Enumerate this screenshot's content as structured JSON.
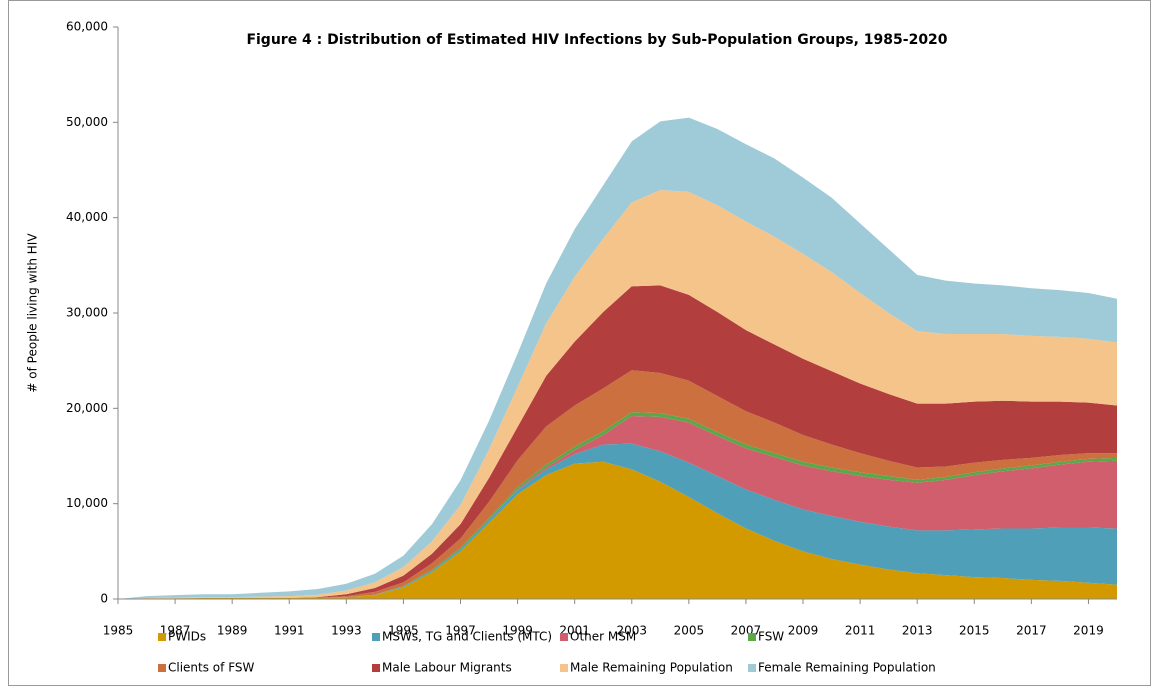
{
  "chart_data": {
    "type": "stacked_area",
    "title": "Figure 4 : Distribution of Estimated HIV Infections by Sub-Population Groups, 1985-2020",
    "y_label": "# of People living with HIV",
    "x": [
      1985,
      1986,
      1987,
      1988,
      1989,
      1990,
      1991,
      1992,
      1993,
      1994,
      1995,
      1996,
      1997,
      1998,
      1999,
      2000,
      2001,
      2002,
      2003,
      2004,
      2005,
      2006,
      2007,
      2008,
      2009,
      2010,
      2011,
      2012,
      2013,
      2014,
      2015,
      2016,
      2017,
      2018,
      2019,
      2020
    ],
    "xlim": [
      1985,
      2020
    ],
    "xticks": [
      1985,
      1987,
      1989,
      1991,
      1993,
      1995,
      1997,
      1999,
      2001,
      2003,
      2005,
      2007,
      2009,
      2011,
      2013,
      2015,
      2017,
      2019
    ],
    "ylim": [
      0,
      60000
    ],
    "yticks": [
      0,
      {
        "value": 10000,
        "label": "10,000"
      },
      {
        "value": 20000,
        "label": "20,000"
      },
      {
        "value": 30000,
        "label": "30,000"
      },
      {
        "value": 40000,
        "label": "40,000"
      },
      {
        "value": 50000,
        "label": "50,000"
      },
      {
        "value": 60000,
        "label": "60,000"
      }
    ],
    "series": [
      {
        "name": "PWIDs",
        "color": "#d39a00",
        "values": [
          0,
          50,
          80,
          100,
          100,
          100,
          100,
          150,
          200,
          400,
          1200,
          2800,
          5000,
          8000,
          11000,
          13000,
          14200,
          14400,
          13600,
          12300,
          10700,
          9000,
          7400,
          6100,
          5000,
          4200,
          3600,
          3100,
          2700,
          2500,
          2300,
          2200,
          2000,
          1900,
          1700,
          1500
        ]
      },
      {
        "name": "MSWs, TG and Clients (MTC)",
        "color": "#4f9fb8",
        "values": [
          0,
          0,
          0,
          0,
          0,
          0,
          0,
          0,
          0,
          50,
          100,
          150,
          200,
          300,
          400,
          600,
          1000,
          1800,
          2700,
          3200,
          3600,
          3900,
          4100,
          4300,
          4400,
          4500,
          4500,
          4500,
          4500,
          4700,
          5000,
          5200,
          5400,
          5600,
          5800,
          5900
        ]
      },
      {
        "name": "Other MSM",
        "color": "#d05e6d",
        "values": [
          0,
          0,
          0,
          0,
          0,
          0,
          0,
          0,
          0,
          0,
          0,
          0,
          0,
          0,
          100,
          200,
          400,
          1000,
          2900,
          3600,
          4200,
          4200,
          4300,
          4500,
          4600,
          4700,
          4800,
          4900,
          5000,
          5300,
          5700,
          6000,
          6300,
          6600,
          6900,
          7100
        ]
      },
      {
        "name": "FSW",
        "color": "#5ca74a",
        "values": [
          0,
          0,
          0,
          0,
          0,
          0,
          0,
          0,
          0,
          0,
          50,
          100,
          150,
          200,
          250,
          300,
          400,
          400,
          400,
          400,
          400,
          400,
          400,
          400,
          400,
          400,
          400,
          400,
          300,
          300,
          300,
          300,
          300,
          300,
          300,
          300
        ]
      },
      {
        "name": "Clients of FSW",
        "color": "#cc7040",
        "values": [
          0,
          0,
          0,
          0,
          0,
          0,
          0,
          0,
          100,
          300,
          400,
          700,
          1000,
          1700,
          2800,
          4000,
          4300,
          4500,
          4400,
          4200,
          4000,
          3800,
          3500,
          3200,
          2800,
          2400,
          2000,
          1600,
          1300,
          1100,
          1000,
          900,
          800,
          700,
          600,
          500
        ]
      },
      {
        "name": "Male Labour Migrants",
        "color": "#b23f3e",
        "values": [
          0,
          0,
          0,
          0,
          0,
          0,
          0,
          50,
          200,
          400,
          700,
          1000,
          1500,
          2500,
          3500,
          5300,
          6700,
          8000,
          8800,
          9200,
          9000,
          8800,
          8500,
          8200,
          8000,
          7700,
          7300,
          7000,
          6700,
          6600,
          6400,
          6200,
          5900,
          5600,
          5300,
          5000
        ]
      },
      {
        "name": "Male Remaining Population",
        "color": "#f4c48a",
        "values": [
          0,
          50,
          80,
          100,
          100,
          150,
          200,
          250,
          400,
          600,
          900,
          1300,
          2000,
          3000,
          4200,
          5500,
          6800,
          7700,
          8800,
          10000,
          10800,
          11200,
          11400,
          11300,
          11000,
          10400,
          9500,
          8500,
          7600,
          7300,
          7100,
          7000,
          6900,
          6800,
          6700,
          6600
        ]
      },
      {
        "name": "Female Remaining Population",
        "color": "#9fcbd9",
        "values": [
          0,
          200,
          250,
          300,
          300,
          400,
          500,
          600,
          700,
          900,
          1200,
          1800,
          2600,
          3000,
          3500,
          4200,
          5000,
          5600,
          6400,
          7200,
          7800,
          8000,
          8100,
          8200,
          8000,
          7800,
          7300,
          6700,
          5900,
          5600,
          5300,
          5100,
          5000,
          4900,
          4800,
          4600
        ]
      }
    ]
  }
}
